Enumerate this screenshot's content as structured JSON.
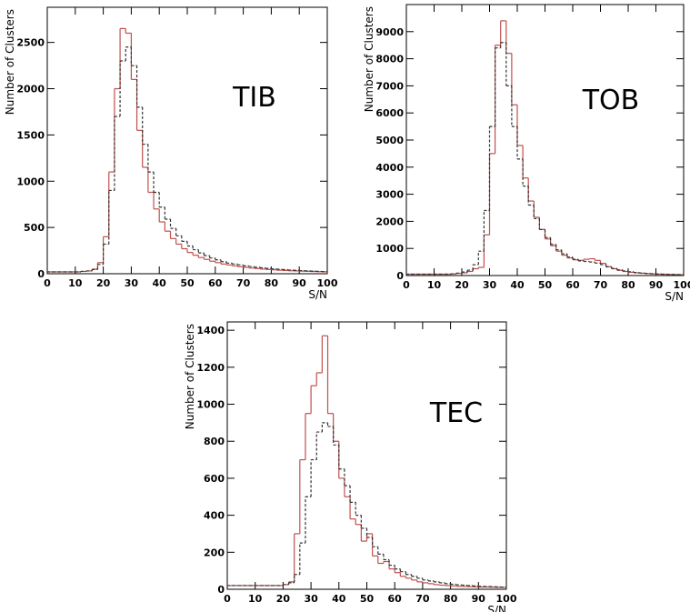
{
  "chart_data": [
    {
      "type": "histogram",
      "annotation": "TIB",
      "xlabel": "S/N",
      "ylabel": "Number of Clusters",
      "bins": [
        0,
        2,
        4,
        6,
        8,
        10,
        12,
        14,
        16,
        18,
        20,
        22,
        24,
        26,
        28,
        30,
        32,
        34,
        36,
        38,
        40,
        42,
        44,
        46,
        48,
        50,
        52,
        54,
        56,
        58,
        60,
        62,
        64,
        66,
        68,
        70,
        72,
        74,
        76,
        78,
        80,
        82,
        84,
        86,
        88,
        90,
        92,
        94,
        96,
        98,
        100
      ],
      "series": [
        {
          "color": "#c0504d",
          "values": [
            20,
            20,
            20,
            20,
            20,
            20,
            25,
            30,
            50,
            120,
            400,
            1100,
            2000,
            2650,
            2600,
            2100,
            1550,
            1150,
            880,
            700,
            560,
            460,
            380,
            320,
            270,
            230,
            200,
            175,
            155,
            135,
            120,
            105,
            95,
            85,
            75,
            68,
            62,
            56,
            50,
            46,
            42,
            38,
            35,
            32,
            30,
            28,
            26,
            24,
            22,
            20
          ]
        },
        {
          "color": "#333333",
          "values": [
            20,
            20,
            20,
            20,
            20,
            20,
            25,
            30,
            45,
            100,
            320,
            900,
            1700,
            2300,
            2450,
            2250,
            1800,
            1400,
            1100,
            880,
            720,
            590,
            490,
            410,
            350,
            300,
            260,
            225,
            195,
            170,
            150,
            130,
            115,
            105,
            95,
            85,
            78,
            70,
            64,
            58,
            53,
            48,
            44,
            40,
            37,
            34,
            31,
            28,
            26,
            24
          ]
        }
      ],
      "xlim": [
        0,
        100
      ],
      "xticks": [
        0,
        10,
        20,
        30,
        40,
        50,
        60,
        70,
        80,
        90,
        100
      ],
      "ylim": [
        0,
        2880
      ],
      "yticks": [
        0,
        500,
        1000,
        1500,
        2000,
        2500
      ]
    },
    {
      "type": "histogram",
      "annotation": "TOB",
      "xlabel": "S/N",
      "ylabel": "Number of Clusters",
      "bins": [
        0,
        2,
        4,
        6,
        8,
        10,
        12,
        14,
        16,
        18,
        20,
        22,
        24,
        26,
        28,
        30,
        32,
        34,
        36,
        38,
        40,
        42,
        44,
        46,
        48,
        50,
        52,
        54,
        56,
        58,
        60,
        62,
        64,
        66,
        68,
        70,
        72,
        74,
        76,
        78,
        80,
        82,
        84,
        86,
        88,
        90,
        92,
        94,
        96,
        98,
        100
      ],
      "series": [
        {
          "color": "#c0504d",
          "values": [
            50,
            50,
            50,
            50,
            50,
            50,
            50,
            50,
            60,
            80,
            100,
            150,
            250,
            300,
            1500,
            4500,
            8500,
            9400,
            8200,
            6300,
            4800,
            3600,
            2750,
            2150,
            1700,
            1350,
            1100,
            900,
            750,
            650,
            580,
            560,
            600,
            620,
            560,
            450,
            330,
            250,
            190,
            150,
            120,
            100,
            85,
            70,
            60,
            50,
            45,
            40,
            35,
            30
          ]
        },
        {
          "color": "#333333",
          "values": [
            50,
            50,
            50,
            50,
            50,
            50,
            50,
            50,
            60,
            90,
            130,
            200,
            400,
            900,
            2400,
            5500,
            8400,
            8600,
            7000,
            5500,
            4300,
            3300,
            2600,
            2100,
            1700,
            1400,
            1150,
            950,
            800,
            680,
            600,
            540,
            520,
            500,
            460,
            400,
            320,
            260,
            210,
            170,
            140,
            115,
            95,
            80,
            68,
            58,
            50,
            44,
            38,
            33
          ]
        }
      ],
      "xlim": [
        0,
        100
      ],
      "xticks": [
        0,
        10,
        20,
        30,
        40,
        50,
        60,
        70,
        80,
        90,
        100
      ],
      "ylim": [
        0,
        10000
      ],
      "yticks": [
        0,
        1000,
        2000,
        3000,
        4000,
        5000,
        6000,
        7000,
        8000,
        9000
      ]
    },
    {
      "type": "histogram",
      "annotation": "TEC",
      "xlabel": "S/N",
      "ylabel": "Number of Clusters",
      "bins": [
        0,
        2,
        4,
        6,
        8,
        10,
        12,
        14,
        16,
        18,
        20,
        22,
        24,
        26,
        28,
        30,
        32,
        34,
        36,
        38,
        40,
        42,
        44,
        46,
        48,
        50,
        52,
        54,
        56,
        58,
        60,
        62,
        64,
        66,
        68,
        70,
        72,
        74,
        76,
        78,
        80,
        82,
        84,
        86,
        88,
        90,
        92,
        94,
        96,
        98,
        100
      ],
      "series": [
        {
          "color": "#c0504d",
          "values": [
            20,
            20,
            20,
            20,
            20,
            20,
            20,
            20,
            20,
            20,
            25,
            40,
            300,
            700,
            950,
            1100,
            1170,
            1370,
            950,
            800,
            600,
            500,
            380,
            350,
            260,
            300,
            180,
            140,
            150,
            110,
            90,
            70,
            60,
            50,
            40,
            35,
            30,
            25,
            22,
            20,
            18,
            16,
            15,
            14,
            13,
            12,
            12,
            11,
            10,
            10
          ]
        },
        {
          "color": "#333333",
          "values": [
            20,
            20,
            20,
            20,
            20,
            20,
            20,
            20,
            20,
            20,
            25,
            35,
            80,
            250,
            500,
            700,
            850,
            900,
            880,
            780,
            650,
            560,
            470,
            400,
            330,
            280,
            230,
            190,
            160,
            130,
            110,
            95,
            80,
            70,
            60,
            50,
            45,
            40,
            35,
            30,
            27,
            24,
            22,
            20,
            18,
            16,
            15,
            14,
            13,
            12
          ]
        }
      ],
      "xlim": [
        0,
        100
      ],
      "xticks": [
        0,
        10,
        20,
        30,
        40,
        50,
        60,
        70,
        80,
        90,
        100
      ],
      "ylim": [
        0,
        1445
      ],
      "yticks": [
        0,
        200,
        400,
        600,
        800,
        1000,
        1200,
        1400
      ]
    }
  ]
}
